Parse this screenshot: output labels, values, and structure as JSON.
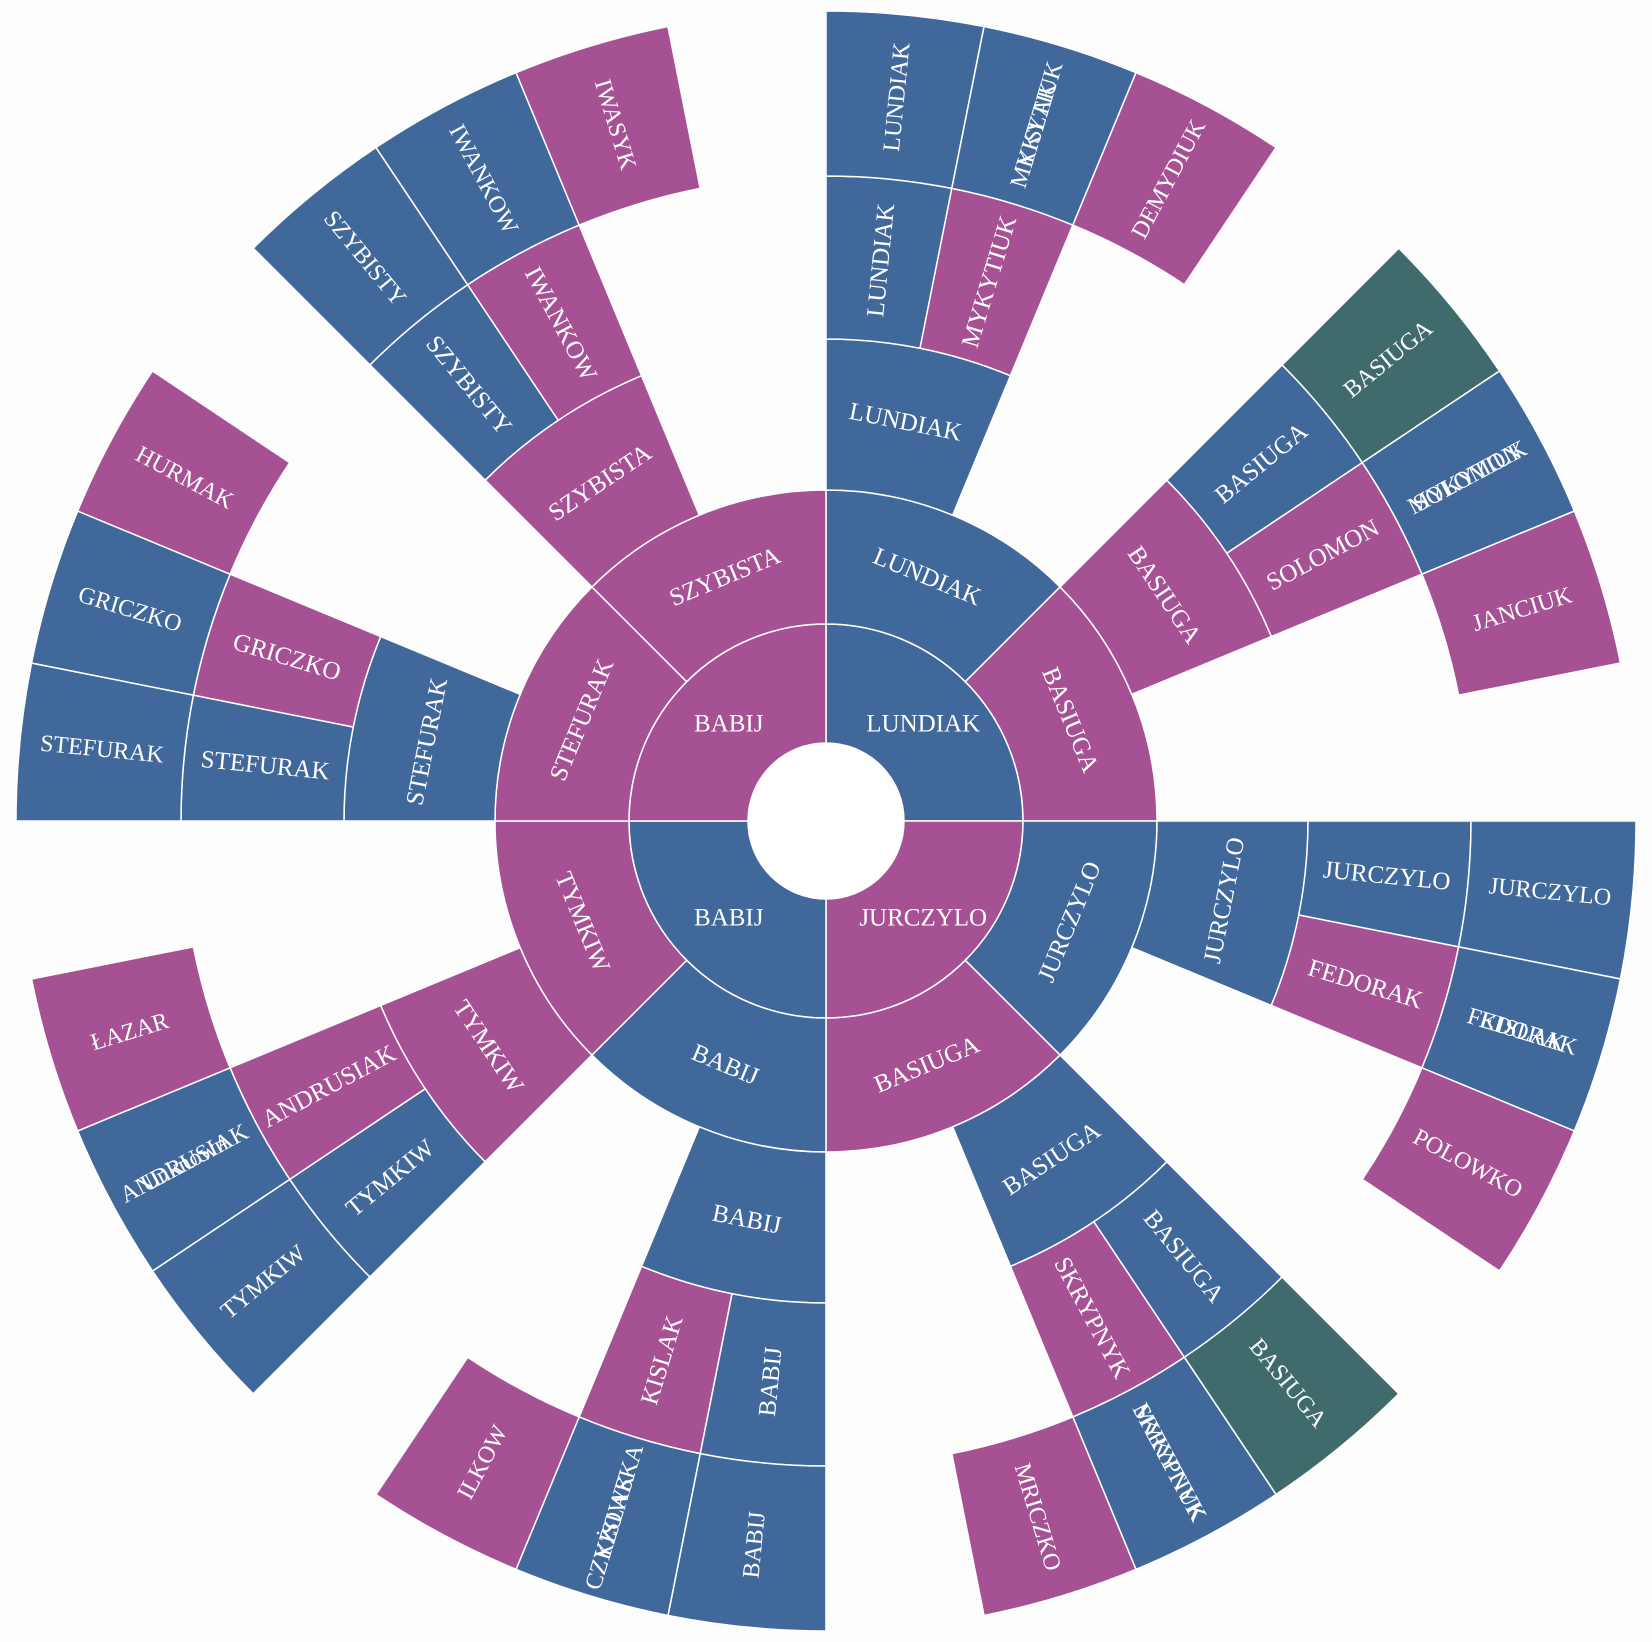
{
  "chart_data": {
    "type": "sunburst",
    "colors": {
      "blue": "#41689b",
      "magenta": "#a65193",
      "teal": "#406b6c",
      "red": "#a75152"
    },
    "sectors": [
      {
        "name": "LUNDIAK",
        "color": "blue",
        "span": 8,
        "children": [
          {
            "name": "LUNDIAK",
            "color": "blue",
            "span": 4,
            "children": [
              {
                "name": "LUNDIAK",
                "color": "blue",
                "span": 2,
                "children": [
                  {
                    "name": "LUNDIAK",
                    "color": "blue",
                    "span": 1,
                    "children": [
                      {
                        "name": "LUNDIAK",
                        "color": "blue"
                      },
                      {
                        "name": "KISLAK",
                        "color": "magenta"
                      }
                    ]
                  },
                  {
                    "name": "MYKYTIUK",
                    "color": "magenta",
                    "span": 1,
                    "children": [
                      {
                        "name": "MYKYTIUK",
                        "color": "blue"
                      },
                      {
                        "name": "DEMYDIUK",
                        "color": "magenta"
                      }
                    ]
                  }
                ]
              }
            ]
          },
          {
            "name": "BASIUGA",
            "color": "magenta",
            "span": 4,
            "children": [
              {
                "name": "BASIUGA",
                "color": "magenta",
                "span": 2,
                "children": [
                  {
                    "name": "BASIUGA",
                    "color": "blue",
                    "span": 1,
                    "children": [
                      {
                        "name": "BASIUGA",
                        "color": "teal"
                      },
                      {
                        "name": "MYKYTIUK",
                        "color": "red"
                      }
                    ]
                  },
                  {
                    "name": "SOLOMON",
                    "color": "magenta",
                    "span": 1,
                    "children": [
                      {
                        "name": "SOLOMON",
                        "color": "blue"
                      },
                      {
                        "name": "JANCIUK",
                        "color": "magenta"
                      }
                    ]
                  }
                ]
              }
            ]
          }
        ]
      },
      {
        "name": "JURCZYLO",
        "color": "magenta",
        "span": 8,
        "children": [
          {
            "name": "JURCZYLO",
            "color": "blue",
            "span": 4,
            "children": [
              {
                "name": "JURCZYLO",
                "color": "blue",
                "span": 2,
                "children": [
                  {
                    "name": "JURCZYLO",
                    "color": "blue",
                    "span": 1,
                    "children": [
                      {
                        "name": "JURCZYLO",
                        "color": "blue"
                      },
                      {
                        "name": "KISLAK",
                        "color": "magenta"
                      }
                    ]
                  },
                  {
                    "name": "FEDORAK",
                    "color": "magenta",
                    "span": 1,
                    "children": [
                      {
                        "name": "FEDORAK",
                        "color": "blue"
                      },
                      {
                        "name": "POLOWKO",
                        "color": "magenta"
                      }
                    ]
                  }
                ]
              }
            ]
          },
          {
            "name": "BASIUGA",
            "color": "magenta",
            "span": 4,
            "children": [
              {
                "name": "BASIUGA",
                "color": "blue",
                "span": 2,
                "children": [
                  {
                    "name": "BASIUGA",
                    "color": "blue",
                    "span": 1,
                    "children": [
                      {
                        "name": "BASIUGA",
                        "color": "teal"
                      },
                      {
                        "name": "MYKYTIUK",
                        "color": "red"
                      }
                    ]
                  },
                  {
                    "name": "SKRYPNYK",
                    "color": "magenta",
                    "span": 1,
                    "children": [
                      {
                        "name": "SKRYPNYK",
                        "color": "blue"
                      },
                      {
                        "name": "MRICZKO",
                        "color": "magenta"
                      }
                    ]
                  }
                ]
              }
            ]
          }
        ]
      },
      {
        "name": "BABIJ",
        "color": "blue",
        "span": 8,
        "children": [
          {
            "name": "BABIJ",
            "color": "blue",
            "span": 4,
            "children": [
              {
                "name": "BABIJ",
                "color": "blue",
                "span": 2,
                "children": [
                  {
                    "name": "BABIJ",
                    "color": "blue",
                    "span": 1,
                    "children": [
                      {
                        "name": "BABIJ",
                        "color": "blue"
                      },
                      {
                        "name": "CZYŻOWSKA",
                        "color": "magenta"
                      }
                    ]
                  },
                  {
                    "name": "KISLAK",
                    "color": "magenta",
                    "span": 1,
                    "children": [
                      {
                        "name": "KISLAK",
                        "color": "blue"
                      },
                      {
                        "name": "ILKOW",
                        "color": "magenta"
                      }
                    ]
                  }
                ]
              }
            ]
          },
          {
            "name": "TYMKIW",
            "color": "magenta",
            "span": 4,
            "children": [
              {
                "name": "TYMKIW",
                "color": "magenta",
                "span": 2,
                "children": [
                  {
                    "name": "TYMKIW",
                    "color": "blue",
                    "span": 1,
                    "children": [
                      {
                        "name": "TYMKIW",
                        "color": "blue"
                      },
                      {
                        "name": "Unknown",
                        "color": "magenta"
                      }
                    ]
                  },
                  {
                    "name": "ANDRUSIAK",
                    "color": "magenta",
                    "span": 1,
                    "children": [
                      {
                        "name": "ANDRUSIAK",
                        "color": "blue"
                      },
                      {
                        "name": "ŁAZAR",
                        "color": "magenta"
                      }
                    ]
                  }
                ]
              }
            ]
          }
        ]
      },
      {
        "name": "BABIJ",
        "color": "magenta",
        "span": 8,
        "children": [
          {
            "name": "STEFURAK",
            "color": "magenta",
            "span": 4,
            "children": [
              {
                "name": "STEFURAK",
                "color": "blue",
                "span": 2,
                "children": [
                  {
                    "name": "STEFURAK",
                    "color": "blue",
                    "span": 1,
                    "children": [
                      {
                        "name": "STEFURAK",
                        "color": "blue"
                      },
                      {
                        "name": "",
                        "color": "magenta"
                      }
                    ]
                  },
                  {
                    "name": "GRICZKO",
                    "color": "magenta",
                    "span": 1,
                    "children": [
                      {
                        "name": "GRICZKO",
                        "color": "blue"
                      },
                      {
                        "name": "HURMAK",
                        "color": "magenta"
                      }
                    ]
                  }
                ]
              }
            ]
          },
          {
            "name": "SZYBISTA",
            "color": "magenta",
            "span": 4,
            "children": [
              {
                "name": "SZYBISTA",
                "color": "magenta",
                "span": 2,
                "children": [
                  {
                    "name": "SZYBISTY",
                    "color": "blue",
                    "span": 1,
                    "children": [
                      {
                        "name": "SZYBISTY",
                        "color": "blue"
                      },
                      {
                        "name": "",
                        "color": "magenta"
                      }
                    ]
                  },
                  {
                    "name": "IWANKOW",
                    "color": "magenta",
                    "span": 1,
                    "children": [
                      {
                        "name": "IWANKOW",
                        "color": "blue"
                      },
                      {
                        "name": "IWASYK",
                        "color": "magenta"
                      }
                    ]
                  }
                ]
              }
            ]
          }
        ]
      }
    ]
  }
}
